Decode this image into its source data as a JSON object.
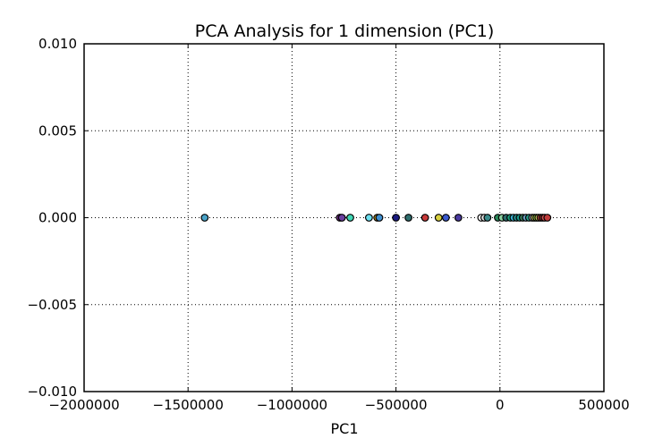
{
  "chart_data": {
    "type": "scatter",
    "title": "PCA Analysis for 1 dimension (PC1)",
    "xlabel": "PC1",
    "ylabel": "",
    "xlim": [
      -2000000,
      500000
    ],
    "ylim": [
      -0.01,
      0.01
    ],
    "xticks": [
      -2000000,
      -1500000,
      -1000000,
      -500000,
      0,
      500000
    ],
    "xtick_labels": [
      "−2000000",
      "−1500000",
      "−1000000",
      "−500000",
      "0",
      "500000"
    ],
    "yticks": [
      0.01,
      0.005,
      0.0,
      -0.005,
      -0.01
    ],
    "ytick_labels": [
      "0.010",
      "0.005",
      "0.000",
      "−0.005",
      "−0.010"
    ],
    "grid": true,
    "points": [
      {
        "x": -1420000,
        "y": 0,
        "color": "#4aa3c8"
      },
      {
        "x": -770000,
        "y": 0,
        "color": "#7a2f8c"
      },
      {
        "x": -760000,
        "y": 0,
        "color": "#6a3fa0"
      },
      {
        "x": -720000,
        "y": 0,
        "color": "#3fd6b4"
      },
      {
        "x": -630000,
        "y": 0,
        "color": "#6ee0f0"
      },
      {
        "x": -590000,
        "y": 0,
        "color": "#c8a020"
      },
      {
        "x": -580000,
        "y": 0,
        "color": "#3f8fd0"
      },
      {
        "x": -500000,
        "y": 0,
        "color": "#1a1a80"
      },
      {
        "x": -440000,
        "y": 0,
        "color": "#2f6f6f"
      },
      {
        "x": -360000,
        "y": 0,
        "color": "#c83a3a"
      },
      {
        "x": -295000,
        "y": 0,
        "color": "#d8d040"
      },
      {
        "x": -260000,
        "y": 0,
        "color": "#3a5ad0"
      },
      {
        "x": -200000,
        "y": 0,
        "color": "#4a3aa0"
      },
      {
        "x": -90000,
        "y": 0,
        "color": "#ffffff"
      },
      {
        "x": -75000,
        "y": 0,
        "color": "#dddddd"
      },
      {
        "x": -60000,
        "y": 0,
        "color": "#3a8a8a"
      },
      {
        "x": -10000,
        "y": 0,
        "color": "#2a8a5a"
      },
      {
        "x": 10000,
        "y": 0,
        "color": "#8ad0a0"
      },
      {
        "x": 30000,
        "y": 0,
        "color": "#2a6a6a"
      },
      {
        "x": 50000,
        "y": 0,
        "color": "#1aa07a"
      },
      {
        "x": 65000,
        "y": 0,
        "color": "#3ab0d0"
      },
      {
        "x": 80000,
        "y": 0,
        "color": "#2a8a8a"
      },
      {
        "x": 95000,
        "y": 0,
        "color": "#1a9a8a"
      },
      {
        "x": 110000,
        "y": 0,
        "color": "#3a7a5a"
      },
      {
        "x": 125000,
        "y": 0,
        "color": "#6a9aba"
      },
      {
        "x": 140000,
        "y": 0,
        "color": "#2aa08a"
      },
      {
        "x": 155000,
        "y": 0,
        "color": "#b0b0c0"
      },
      {
        "x": 165000,
        "y": 0,
        "color": "#d0d070"
      },
      {
        "x": 175000,
        "y": 0,
        "color": "#90c040"
      },
      {
        "x": 185000,
        "y": 0,
        "color": "#e0e070"
      },
      {
        "x": 195000,
        "y": 0,
        "color": "#c05040"
      },
      {
        "x": 205000,
        "y": 0,
        "color": "#a03030"
      },
      {
        "x": 215000,
        "y": 0,
        "color": "#d05050"
      },
      {
        "x": 228000,
        "y": 0,
        "color": "#c03a3a"
      }
    ]
  }
}
